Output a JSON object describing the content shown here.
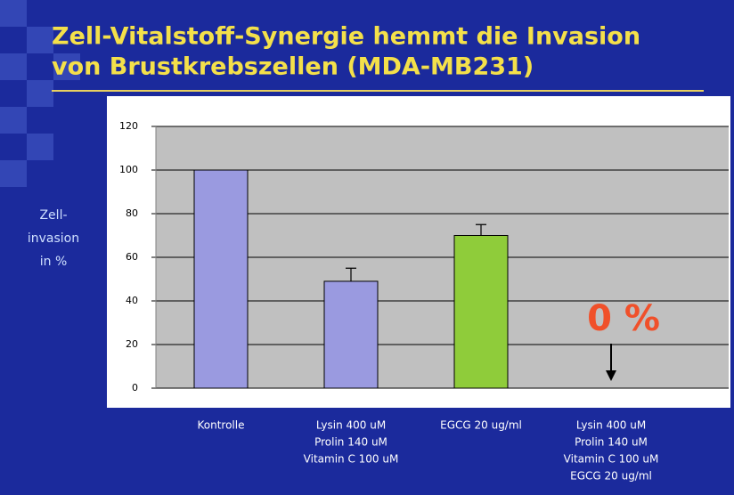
{
  "chart_data": {
    "type": "bar",
    "title": [
      "Zell-Vitalstoff-Synergie hemmt die Invasion",
      "von Brustkrebszellen (MDA-MB231)"
    ],
    "y_label": [
      "Zell-",
      "invasion",
      "in %"
    ],
    "categories": [
      [
        "Kontrolle"
      ],
      [
        "Lysin 400 uM",
        "Prolin 140 uM",
        "Vitamin C 100 uM"
      ],
      [
        "EGCG 20 ug/ml"
      ],
      [
        "Lysin 400 uM",
        "Prolin 140 uM",
        "Vitamin C 100 uM",
        "EGCG 20 ug/ml"
      ]
    ],
    "values": [
      100,
      49,
      70,
      0
    ],
    "errors": [
      null,
      6,
      5,
      null
    ],
    "colors": [
      "#9a9ae0",
      "#9a9ae0",
      "#8fcc3a",
      "#3fb5a0"
    ],
    "ylim": [
      0,
      120
    ],
    "yticks": [
      0,
      20,
      40,
      60,
      80,
      100,
      120
    ],
    "grid": true,
    "annotation": "0 %"
  }
}
